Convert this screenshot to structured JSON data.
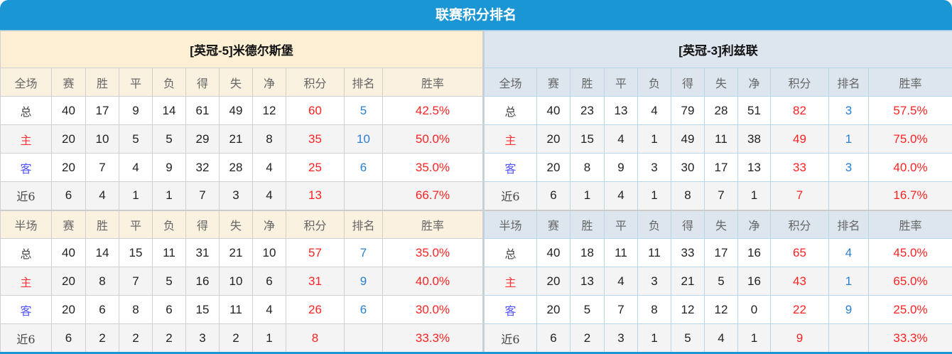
{
  "title": "联赛积分排名",
  "headers": {
    "full": "全场",
    "half": "半场",
    "cols": [
      "赛",
      "胜",
      "平",
      "负",
      "得",
      "失",
      "净",
      "积分",
      "排名",
      "胜率"
    ]
  },
  "colors": {
    "header_bar": "#1a96d4",
    "points": "#ff2222",
    "rank": "#2a7fd0",
    "home_label": "#ff3333",
    "away_label": "#5555ff"
  },
  "teams": [
    {
      "name": "[英冠-5]米德尔斯堡",
      "full": [
        {
          "label": "总",
          "kind": "total",
          "vals": [
            "40",
            "17",
            "9",
            "14",
            "61",
            "49",
            "12",
            "60",
            "5",
            "42.5%"
          ]
        },
        {
          "label": "主",
          "kind": "home",
          "vals": [
            "20",
            "10",
            "5",
            "5",
            "29",
            "21",
            "8",
            "35",
            "10",
            "50.0%"
          ]
        },
        {
          "label": "客",
          "kind": "away",
          "vals": [
            "20",
            "7",
            "4",
            "9",
            "32",
            "28",
            "4",
            "25",
            "6",
            "35.0%"
          ]
        },
        {
          "label": "近6",
          "kind": "recent",
          "vals": [
            "6",
            "4",
            "1",
            "1",
            "7",
            "3",
            "4",
            "13",
            "",
            "66.7%"
          ]
        }
      ],
      "half": [
        {
          "label": "总",
          "kind": "total",
          "vals": [
            "40",
            "14",
            "15",
            "11",
            "31",
            "21",
            "10",
            "57",
            "7",
            "35.0%"
          ]
        },
        {
          "label": "主",
          "kind": "home",
          "vals": [
            "20",
            "8",
            "7",
            "5",
            "16",
            "10",
            "6",
            "31",
            "9",
            "40.0%"
          ]
        },
        {
          "label": "客",
          "kind": "away",
          "vals": [
            "20",
            "6",
            "8",
            "6",
            "15",
            "11",
            "4",
            "26",
            "6",
            "30.0%"
          ]
        },
        {
          "label": "近6",
          "kind": "recent",
          "vals": [
            "6",
            "2",
            "2",
            "2",
            "3",
            "2",
            "1",
            "8",
            "",
            "33.3%"
          ]
        }
      ]
    },
    {
      "name": "[英冠-3]利兹联",
      "full": [
        {
          "label": "总",
          "kind": "total",
          "vals": [
            "40",
            "23",
            "13",
            "4",
            "79",
            "28",
            "51",
            "82",
            "3",
            "57.5%"
          ]
        },
        {
          "label": "主",
          "kind": "home",
          "vals": [
            "20",
            "15",
            "4",
            "1",
            "49",
            "11",
            "38",
            "49",
            "1",
            "75.0%"
          ]
        },
        {
          "label": "客",
          "kind": "away",
          "vals": [
            "20",
            "8",
            "9",
            "3",
            "30",
            "17",
            "13",
            "33",
            "3",
            "40.0%"
          ]
        },
        {
          "label": "近6",
          "kind": "recent",
          "vals": [
            "6",
            "1",
            "4",
            "1",
            "8",
            "7",
            "1",
            "7",
            "",
            "16.7%"
          ]
        }
      ],
      "half": [
        {
          "label": "总",
          "kind": "total",
          "vals": [
            "40",
            "18",
            "11",
            "11",
            "33",
            "17",
            "16",
            "65",
            "4",
            "45.0%"
          ]
        },
        {
          "label": "主",
          "kind": "home",
          "vals": [
            "20",
            "13",
            "4",
            "3",
            "21",
            "5",
            "16",
            "43",
            "1",
            "65.0%"
          ]
        },
        {
          "label": "客",
          "kind": "away",
          "vals": [
            "20",
            "5",
            "7",
            "8",
            "12",
            "12",
            "0",
            "22",
            "9",
            "25.0%"
          ]
        },
        {
          "label": "近6",
          "kind": "recent",
          "vals": [
            "6",
            "2",
            "3",
            "1",
            "5",
            "4",
            "1",
            "9",
            "",
            "33.3%"
          ]
        }
      ]
    }
  ]
}
